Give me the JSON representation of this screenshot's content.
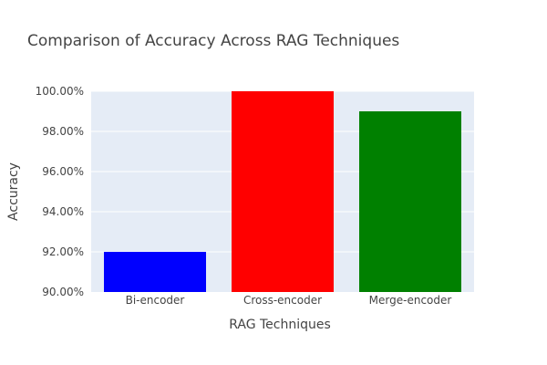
{
  "chart_data": {
    "type": "bar",
    "title": "Comparison of Accuracy Across RAG Techniques",
    "xlabel": "RAG Techniques",
    "ylabel": "Accuracy",
    "categories": [
      "Bi-encoder",
      "Cross-encoder",
      "Merge-encoder"
    ],
    "values": [
      0.92,
      1.0,
      0.99
    ],
    "bar_colors": [
      "#0000ff",
      "#ff0000",
      "#008000"
    ],
    "ylim": [
      0.9,
      1.0
    ],
    "yticks": [
      0.9,
      0.92,
      0.94,
      0.96,
      0.98,
      1.0
    ],
    "ytick_labels": [
      "90.00%",
      "92.00%",
      "94.00%",
      "96.00%",
      "98.00%",
      "100.00%"
    ],
    "grid": true,
    "plot_background": "#e5ecf6",
    "legend": "none"
  }
}
